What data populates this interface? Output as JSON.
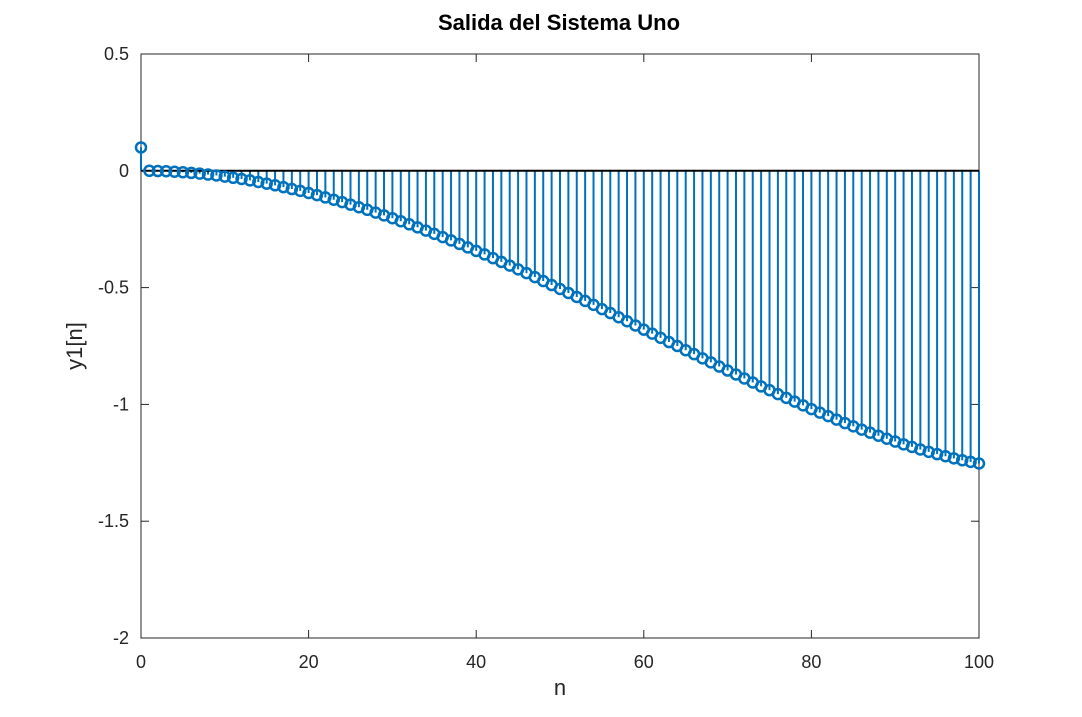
{
  "chart_data": {
    "type": "stem",
    "title": "Salida del Sistema Uno",
    "xlabel": "n",
    "ylabel": "y1[n]",
    "xlim": [
      0,
      100
    ],
    "ylim": [
      -2,
      0.5
    ],
    "xticks": [
      0,
      20,
      40,
      60,
      80,
      100
    ],
    "xtick_labels": [
      "0",
      "20",
      "40",
      "60",
      "80",
      "100"
    ],
    "yticks": [
      -2,
      -1.5,
      -1,
      -0.5,
      0,
      0.5
    ],
    "ytick_labels": [
      "-2",
      "-1.5",
      "-1",
      "-0.5",
      "0",
      "0.5"
    ],
    "grid": false,
    "baseline": 0,
    "stem_color": "#0072BD",
    "baseline_color": "#000000",
    "series": [
      {
        "x": [
          0,
          1,
          2,
          3,
          4,
          5,
          6,
          7,
          8,
          9,
          10,
          11,
          12,
          13,
          14,
          15,
          16,
          17,
          18,
          19,
          20,
          21,
          22,
          23,
          24,
          25,
          26,
          27,
          28,
          29,
          30,
          31,
          32,
          33,
          34,
          35,
          36,
          37,
          38,
          39,
          40,
          41,
          42,
          43,
          44,
          45,
          46,
          47,
          48,
          49,
          50,
          51,
          52,
          53,
          54,
          55,
          56,
          57,
          58,
          59,
          60,
          61,
          62,
          63,
          64,
          65,
          66,
          67,
          68,
          69,
          70,
          71,
          72,
          73,
          74,
          75,
          76,
          77,
          78,
          79,
          80,
          81,
          82,
          83,
          84,
          85,
          86,
          87,
          88,
          89,
          90,
          91,
          92,
          93,
          94,
          95,
          96,
          97,
          98,
          99,
          100
        ],
        "y": [
          0.1,
          0,
          -0.001,
          -0.002,
          -0.004,
          -0.006,
          -0.009,
          -0.012,
          -0.016,
          -0.02,
          -0.025,
          -0.03,
          -0.035,
          -0.041,
          -0.048,
          -0.055,
          -0.062,
          -0.07,
          -0.078,
          -0.086,
          -0.095,
          -0.104,
          -0.114,
          -0.124,
          -0.134,
          -0.145,
          -0.156,
          -0.167,
          -0.179,
          -0.191,
          -0.203,
          -0.216,
          -0.229,
          -0.242,
          -0.256,
          -0.27,
          -0.284,
          -0.298,
          -0.313,
          -0.328,
          -0.343,
          -0.358,
          -0.374,
          -0.39,
          -0.406,
          -0.422,
          -0.438,
          -0.455,
          -0.472,
          -0.489,
          -0.506,
          -0.523,
          -0.54,
          -0.557,
          -0.574,
          -0.592,
          -0.609,
          -0.627,
          -0.644,
          -0.662,
          -0.68,
          -0.697,
          -0.715,
          -0.733,
          -0.75,
          -0.768,
          -0.785,
          -0.803,
          -0.82,
          -0.838,
          -0.855,
          -0.872,
          -0.889,
          -0.906,
          -0.923,
          -0.939,
          -0.956,
          -0.972,
          -0.988,
          -1.004,
          -1.02,
          -1.035,
          -1.05,
          -1.065,
          -1.08,
          -1.094,
          -1.108,
          -1.121,
          -1.134,
          -1.147,
          -1.159,
          -1.171,
          -1.182,
          -1.193,
          -1.203,
          -1.213,
          -1.222,
          -1.231,
          -1.239,
          -1.246,
          -1.253
        ]
      }
    ]
  }
}
